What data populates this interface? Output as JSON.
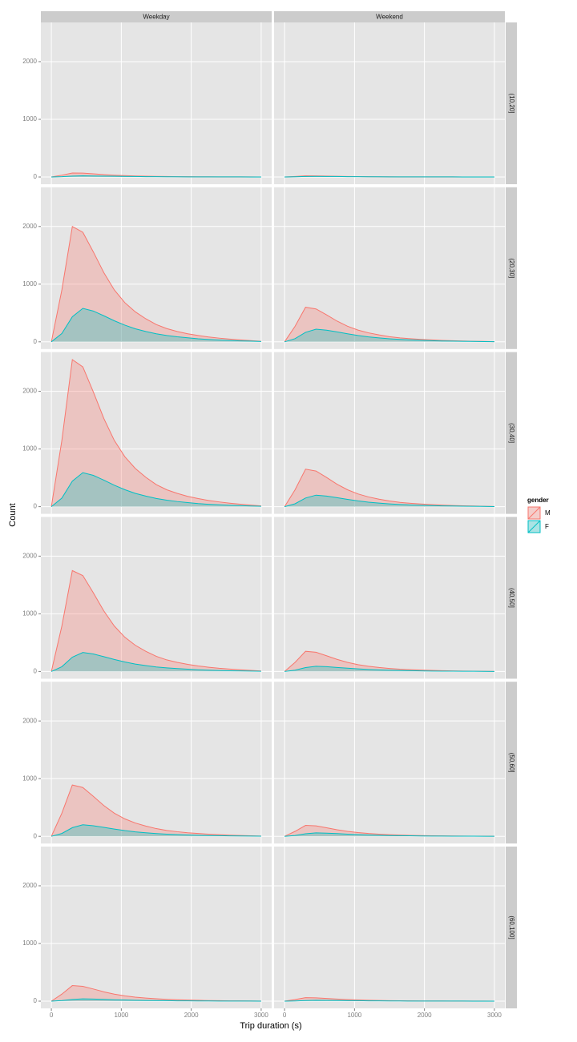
{
  "chart_data": {
    "type": "area",
    "xlabel": "Trip duration (s)",
    "ylabel": "Count",
    "columns": [
      "Weekday",
      "Weekend"
    ],
    "rows": [
      "(10,20]",
      "(20,30]",
      "(30,40]",
      "(40,50]",
      "(50,60]",
      "(60,100]"
    ],
    "legend": {
      "title": "gender",
      "position": "right",
      "entries": [
        {
          "name": "M",
          "color": "#F8766D"
        },
        {
          "name": "F",
          "color": "#00BFC4"
        }
      ]
    },
    "x": [
      0,
      150,
      300,
      450,
      600,
      750,
      900,
      1050,
      1200,
      1350,
      1500,
      1650,
      1800,
      1950,
      2100,
      2250,
      2400,
      2550,
      2700,
      2850,
      3000
    ],
    "xlim": [
      -150,
      3150
    ],
    "xticks": [
      0,
      1000,
      2000,
      3000
    ],
    "ylim": [
      -125,
      2680
    ],
    "yticks": [
      0,
      1000,
      2000
    ],
    "grid": true,
    "panels": [
      {
        "row": 0,
        "col": 0,
        "series": [
          {
            "values": [
              0,
              32,
              70,
              67,
              55,
              42,
              32,
              24,
              18,
              14,
              11,
              8,
              6,
              5,
              4,
              3,
              2,
              2,
              1,
              1,
              0
            ]
          },
          {
            "values": [
              0,
              5,
              15,
              20,
              18,
              16,
              13,
              10,
              8,
              6,
              5,
              4,
              3,
              2,
              2,
              1,
              1,
              1,
              1,
              0,
              0
            ]
          }
        ]
      },
      {
        "row": 0,
        "col": 1,
        "series": [
          {
            "values": [
              0,
              9,
              20,
              19,
              16,
              12,
              9,
              7,
              5,
              4,
              3,
              2,
              2,
              1,
              1,
              1,
              1,
              0,
              0,
              0,
              0
            ]
          },
          {
            "values": [
              0,
              3,
              8,
              10,
              9,
              8,
              6,
              5,
              4,
              3,
              2,
              2,
              2,
              1,
              1,
              1,
              1,
              0,
              0,
              0,
              0
            ]
          }
        ]
      },
      {
        "row": 1,
        "col": 0,
        "series": [
          {
            "values": [
              0,
              900,
              2000,
              1900,
              1560,
              1200,
              900,
              680,
              520,
              400,
              300,
              230,
              180,
              140,
              110,
              84,
              64,
              48,
              34,
              22,
              10
            ]
          },
          {
            "values": [
              0,
              145,
              435,
              580,
              534,
              452,
              365,
              290,
              226,
              180,
              139,
              110,
              87,
              70,
              52,
              41,
              32,
              23,
              17,
              12,
              6
            ]
          }
        ]
      },
      {
        "row": 1,
        "col": 1,
        "series": [
          {
            "values": [
              0,
              270,
              600,
              570,
              468,
              360,
              270,
              204,
              156,
              120,
              90,
              69,
              54,
              42,
              33,
              25,
              19,
              14,
              10,
              7,
              3
            ]
          },
          {
            "values": [
              0,
              55,
              165,
              220,
              202,
              172,
              139,
              110,
              86,
              68,
              53,
              42,
              33,
              26,
              20,
              15,
              12,
              9,
              7,
              4,
              2
            ]
          }
        ]
      },
      {
        "row": 2,
        "col": 0,
        "series": [
          {
            "values": [
              0,
              1148,
              2550,
              2423,
              1989,
              1530,
              1148,
              867,
              663,
              510,
              383,
              293,
              230,
              179,
              140,
              107,
              82,
              61,
              43,
              28,
              13
            ]
          },
          {
            "values": [
              0,
              148,
              443,
              590,
              543,
              460,
              372,
              295,
              230,
              183,
              142,
              112,
              89,
              71,
              53,
              41,
              32,
              24,
              18,
              12,
              6
            ]
          }
        ]
      },
      {
        "row": 2,
        "col": 1,
        "series": [
          {
            "values": [
              0,
              293,
              650,
              618,
              507,
              390,
              293,
              221,
              169,
              130,
              98,
              75,
              59,
              46,
              36,
              27,
              21,
              16,
              11,
              7,
              3
            ]
          },
          {
            "values": [
              0,
              50,
              150,
              200,
              184,
              156,
              126,
              100,
              78,
              62,
              48,
              38,
              30,
              24,
              18,
              14,
              11,
              8,
              6,
              4,
              2
            ]
          }
        ]
      },
      {
        "row": 3,
        "col": 0,
        "series": [
          {
            "values": [
              0,
              788,
              1750,
              1663,
              1365,
              1050,
              788,
              595,
              455,
              350,
              263,
              201,
              158,
              123,
              96,
              74,
              56,
              42,
              30,
              19,
              9
            ]
          },
          {
            "values": [
              0,
              83,
              248,
              330,
              304,
              257,
              208,
              165,
              129,
              102,
              79,
              63,
              50,
              40,
              30,
              23,
              18,
              13,
              10,
              7,
              3
            ]
          }
        ]
      },
      {
        "row": 3,
        "col": 1,
        "series": [
          {
            "values": [
              0,
              158,
              350,
              333,
              273,
              210,
              158,
              119,
              91,
              70,
              53,
              40,
              32,
              25,
              19,
              15,
              11,
              8,
              6,
              4,
              2
            ]
          },
          {
            "values": [
              0,
              23,
              68,
              90,
              83,
              70,
              57,
              45,
              35,
              28,
              22,
              17,
              14,
              11,
              8,
              6,
              5,
              4,
              3,
              2,
              1
            ]
          }
        ]
      },
      {
        "row": 4,
        "col": 0,
        "series": [
          {
            "values": [
              0,
              401,
              890,
              846,
              694,
              534,
              401,
              303,
              231,
              178,
              134,
              102,
              80,
              62,
              49,
              37,
              28,
              21,
              15,
              10,
              4
            ]
          },
          {
            "values": [
              0,
              50,
              150,
              200,
              184,
              156,
              126,
              100,
              78,
              62,
              48,
              38,
              30,
              24,
              18,
              14,
              11,
              8,
              6,
              4,
              2
            ]
          }
        ]
      },
      {
        "row": 4,
        "col": 1,
        "series": [
          {
            "values": [
              0,
              86,
              190,
              181,
              148,
              114,
              86,
              65,
              49,
              38,
              29,
              22,
              17,
              13,
              10,
              8,
              6,
              5,
              3,
              2,
              1
            ]
          },
          {
            "values": [
              0,
              15,
              45,
              60,
              55,
              47,
              38,
              30,
              23,
              19,
              14,
              11,
              9,
              7,
              5,
              4,
              3,
              2,
              2,
              1,
              1
            ]
          }
        ]
      },
      {
        "row": 5,
        "col": 0,
        "series": [
          {
            "values": [
              0,
              122,
              270,
              257,
              211,
              162,
              122,
              92,
              70,
              54,
              41,
              31,
              24,
              19,
              15,
              11,
              9,
              6,
              5,
              3,
              1
            ]
          },
          {
            "values": [
              0,
              10,
              30,
              40,
              37,
              31,
              25,
              20,
              16,
              12,
              10,
              8,
              6,
              5,
              4,
              3,
              2,
              2,
              1,
              1,
              0
            ]
          }
        ]
      },
      {
        "row": 5,
        "col": 1,
        "series": [
          {
            "values": [
              0,
              27,
              60,
              57,
              47,
              36,
              27,
              20,
              16,
              12,
              9,
              7,
              5,
              4,
              3,
              3,
              2,
              1,
              1,
              1,
              0
            ]
          },
          {
            "values": [
              0,
              4,
              11,
              15,
              14,
              12,
              9,
              8,
              6,
              5,
              4,
              3,
              2,
              2,
              1,
              1,
              1,
              1,
              0,
              0,
              0
            ]
          }
        ]
      }
    ]
  }
}
